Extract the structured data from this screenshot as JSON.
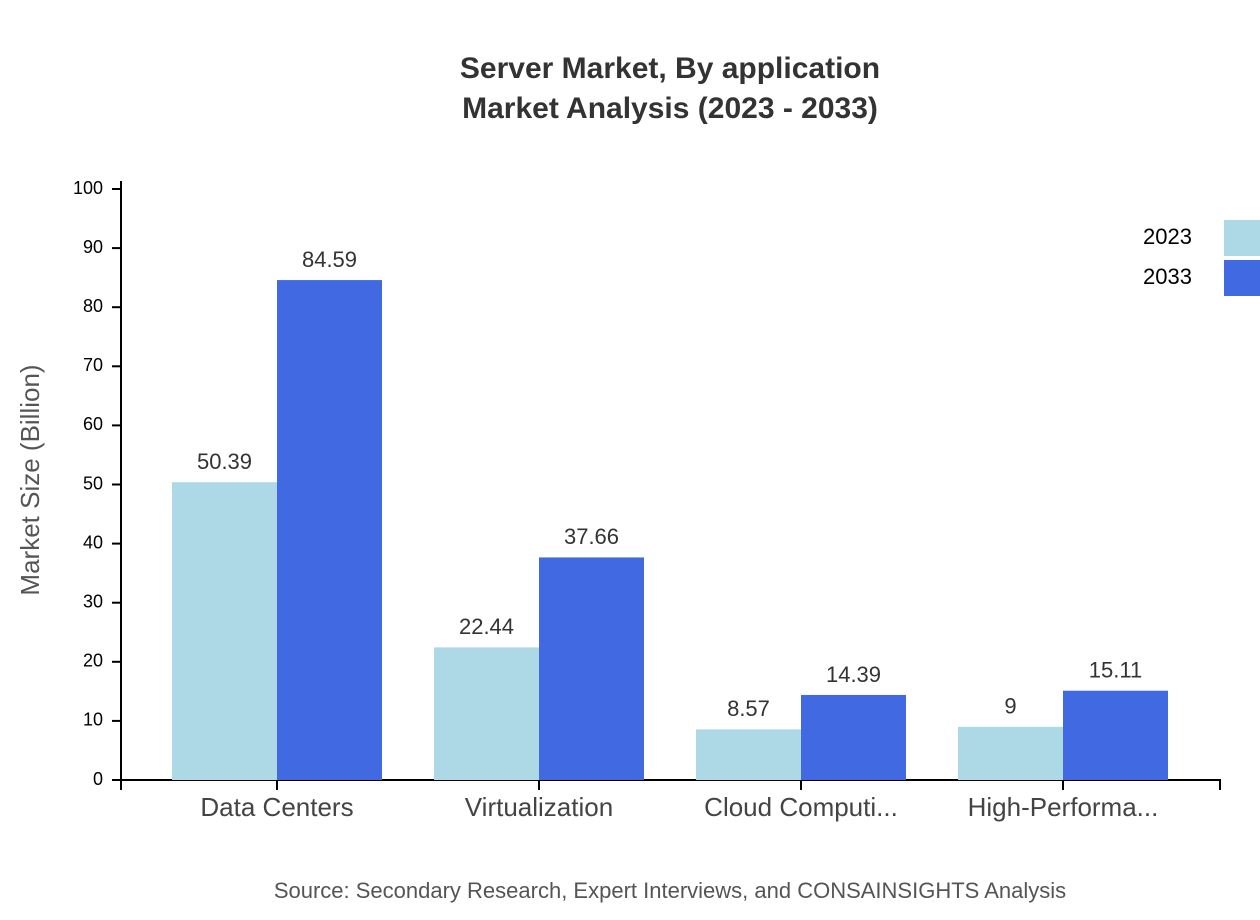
{
  "chart_data": {
    "type": "bar",
    "title": "Server Market, By application",
    "subtitle": "Market Analysis (2023 - 2033)",
    "y_label": "Market Size (Billion)",
    "source": "Source: Secondary Research, Expert Interviews, and CONSAINSIGHTS Analysis",
    "categories": [
      "Data Centers",
      "Virtualization",
      "Cloud Computi...",
      "High-Performa..."
    ],
    "series": [
      {
        "name": "2023",
        "color": "#add8e6",
        "values": [
          50.39,
          22.44,
          8.57,
          9
        ]
      },
      {
        "name": "2033",
        "color": "#4169e1",
        "values": [
          84.59,
          37.66,
          14.39,
          15.11
        ]
      }
    ],
    "ylim": [
      0,
      100
    ],
    "yticks": [
      0,
      10,
      20,
      30,
      40,
      50,
      60,
      70,
      80,
      90,
      100
    ],
    "legend": "top-right",
    "grid": false
  }
}
